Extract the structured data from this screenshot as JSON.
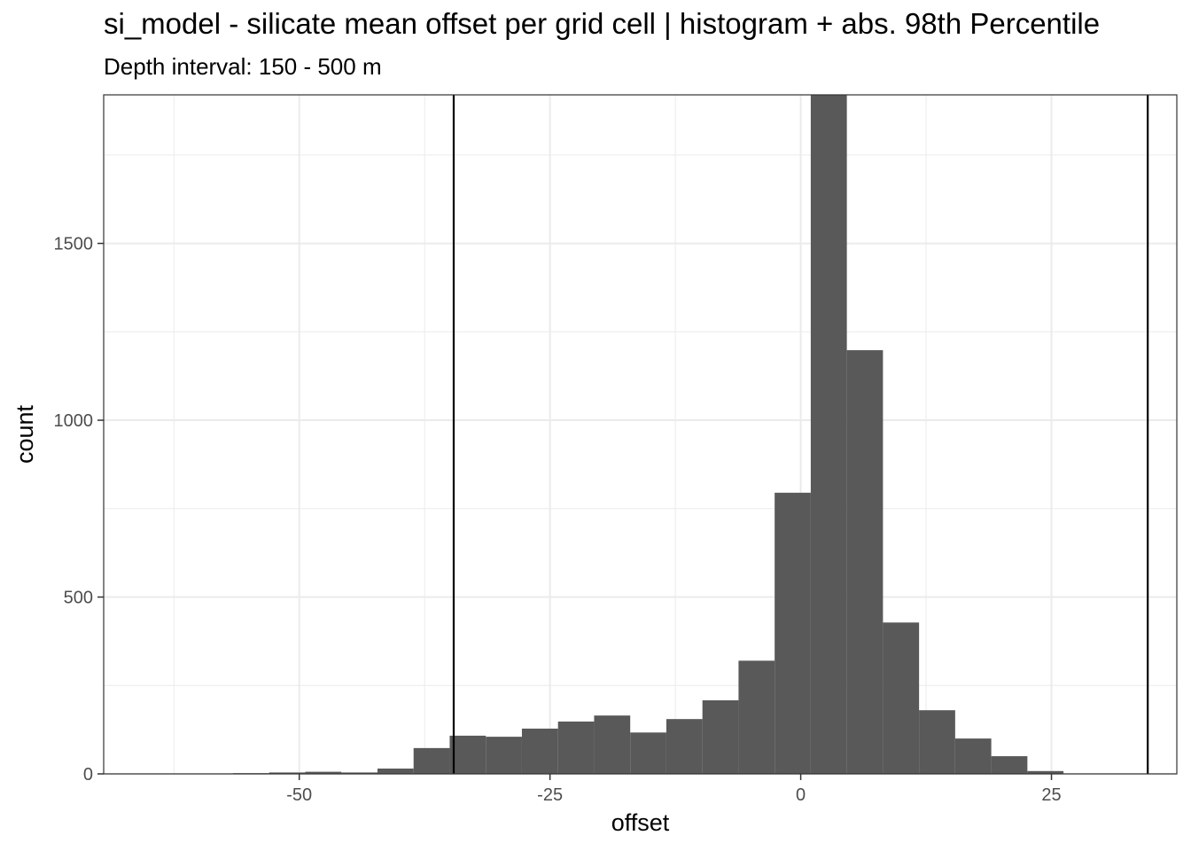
{
  "chart_data": {
    "type": "bar",
    "title": "si_model  -  silicate mean offset per grid cell | histogram + abs. 98th Percentile",
    "subtitle": "Depth interval: 150 - 500 m",
    "xlabel": "offset",
    "ylabel": "count",
    "xlim": [
      -69.5,
      37.5
    ],
    "ylim": [
      0,
      1920
    ],
    "x_ticks": [
      -50,
      -25,
      0,
      25
    ],
    "x_tick_labels": [
      "-50",
      "-25",
      "0",
      "25"
    ],
    "y_ticks": [
      0,
      500,
      1000,
      1500
    ],
    "y_tick_labels": [
      "0",
      "500",
      "1000",
      "1500"
    ],
    "grid": true,
    "bin_width": 3.6,
    "bins": [
      {
        "x0": -56.6,
        "x1": -53.0,
        "count": 2
      },
      {
        "x0": -53.0,
        "x1": -49.4,
        "count": 4
      },
      {
        "x0": -49.4,
        "x1": -45.8,
        "count": 6
      },
      {
        "x0": -45.8,
        "x1": -42.2,
        "count": 4
      },
      {
        "x0": -42.2,
        "x1": -38.6,
        "count": 15
      },
      {
        "x0": -38.6,
        "x1": -35.0,
        "count": 73
      },
      {
        "x0": -35.0,
        "x1": -31.4,
        "count": 108
      },
      {
        "x0": -31.4,
        "x1": -27.8,
        "count": 105
      },
      {
        "x0": -27.8,
        "x1": -24.2,
        "count": 128
      },
      {
        "x0": -24.2,
        "x1": -20.6,
        "count": 148
      },
      {
        "x0": -20.6,
        "x1": -17.0,
        "count": 165
      },
      {
        "x0": -17.0,
        "x1": -13.4,
        "count": 117
      },
      {
        "x0": -13.4,
        "x1": -9.8,
        "count": 155
      },
      {
        "x0": -9.8,
        "x1": -6.2,
        "count": 208
      },
      {
        "x0": -6.2,
        "x1": -2.6,
        "count": 320
      },
      {
        "x0": -2.6,
        "x1": 1.0,
        "count": 795
      },
      {
        "x0": 1.0,
        "x1": 4.6,
        "count": 1920
      },
      {
        "x0": 4.6,
        "x1": 8.2,
        "count": 1198
      },
      {
        "x0": 8.2,
        "x1": 11.8,
        "count": 428
      },
      {
        "x0": 11.8,
        "x1": 15.4,
        "count": 180
      },
      {
        "x0": 15.4,
        "x1": 19.0,
        "count": 100
      },
      {
        "x0": 19.0,
        "x1": 22.6,
        "count": 50
      },
      {
        "x0": 22.6,
        "x1": 26.2,
        "count": 8
      }
    ],
    "percentile_lines": [
      -34.6,
      34.6
    ],
    "colors": {
      "bar_fill": "#595959",
      "vline": "#000000",
      "grid": "#ebebeb",
      "panel_border": "#333333"
    }
  }
}
